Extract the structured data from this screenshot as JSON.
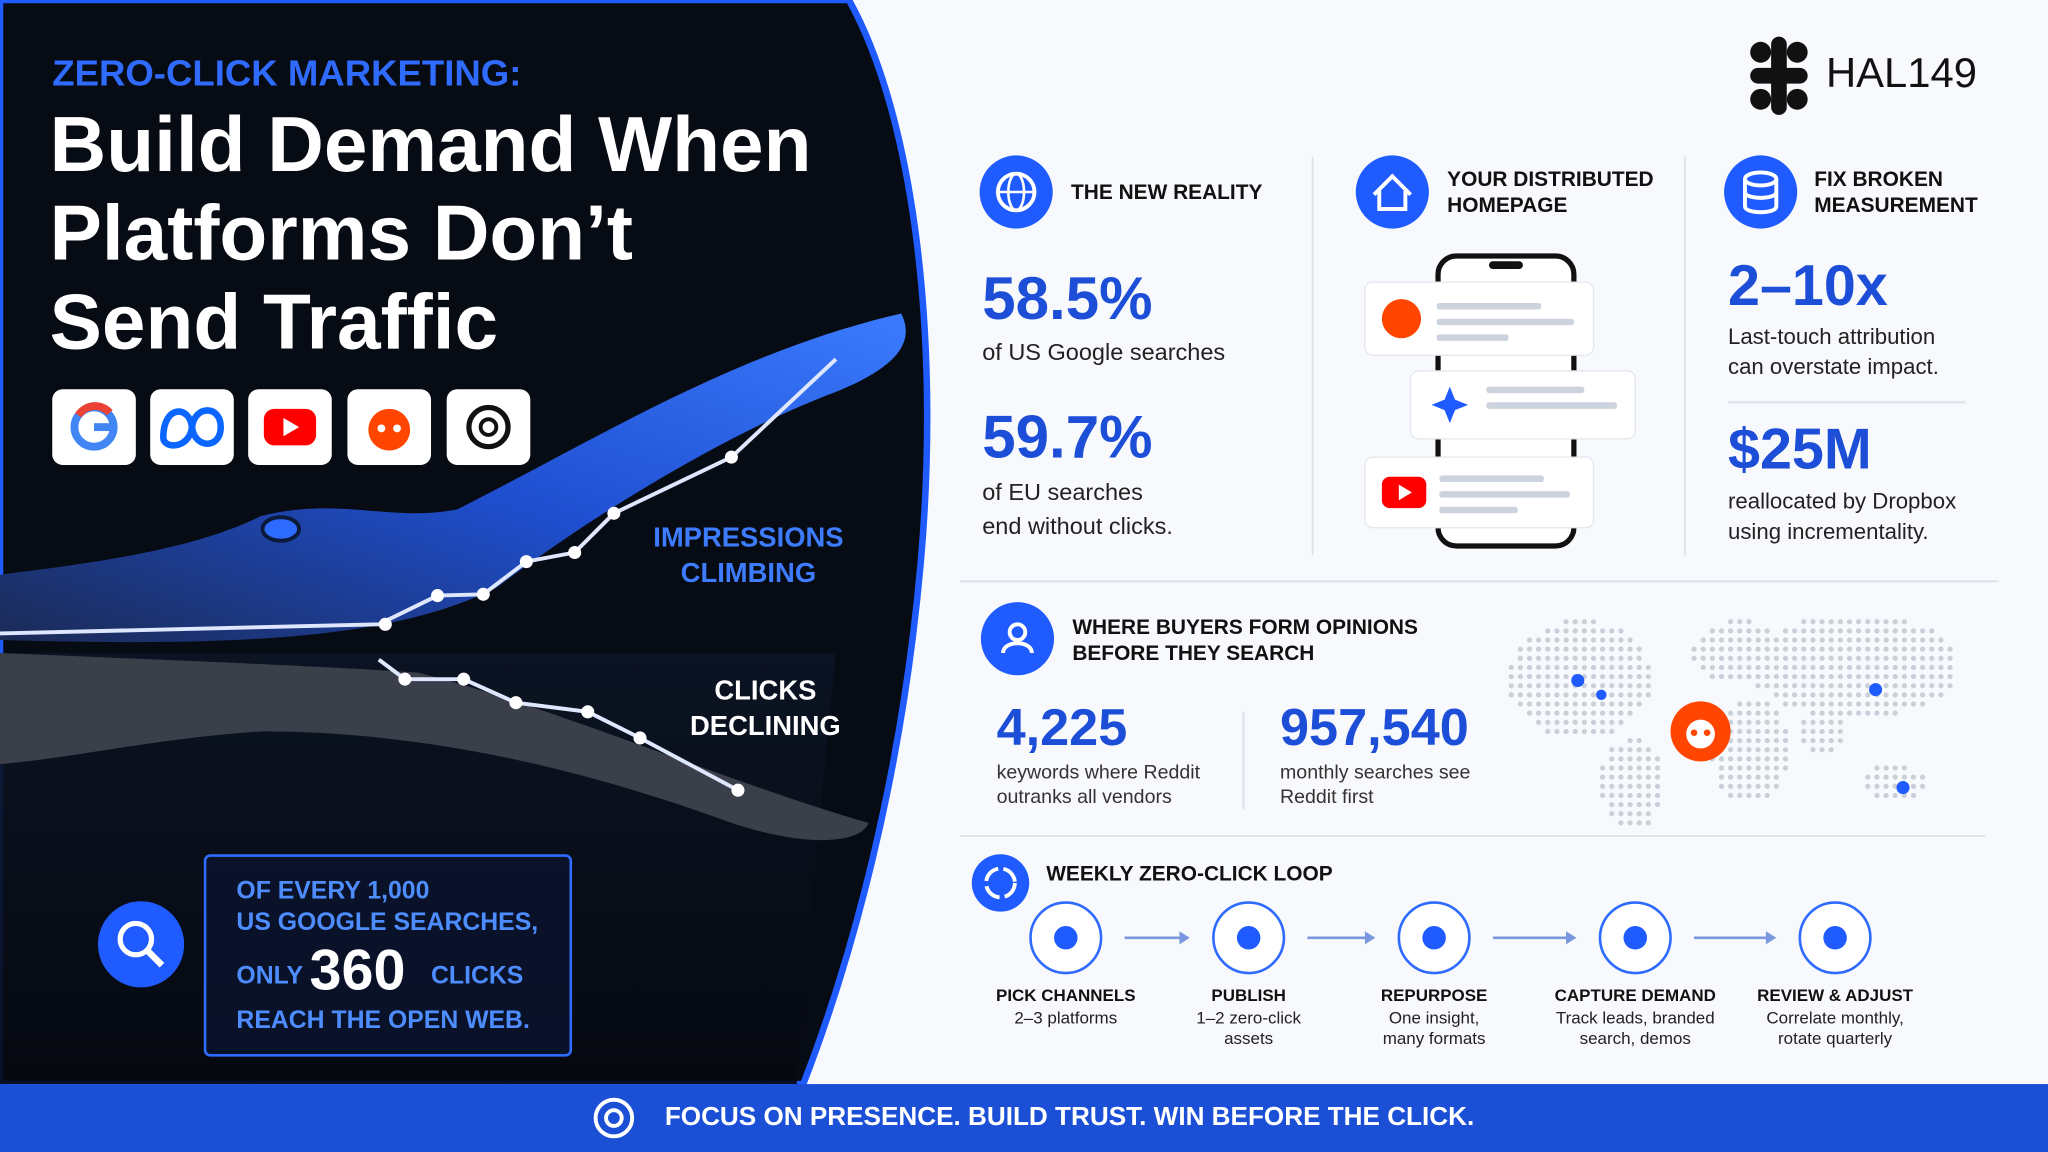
{
  "hero": {
    "kicker": "ZERO-CLICK MARKETING:",
    "title_lines": [
      "Build Demand When",
      "Platforms Don’t",
      "Send Traffic"
    ],
    "impressions_label": [
      "IMPRESSIONS",
      "CLIMBING"
    ],
    "clicks_label": [
      "CLICKS",
      "DECLINING"
    ],
    "callout": {
      "line1": "OF EVERY 1,000",
      "line2": "US GOOGLE SEARCHES,",
      "prefix": "ONLY",
      "number": "360",
      "suffix": "CLICKS",
      "line4": "REACH THE OPEN WEB."
    }
  },
  "logo": {
    "text": "HAL149"
  },
  "new_reality": {
    "title": "THE NEW REALITY",
    "stats": [
      {
        "value": "58.5%",
        "caption": [
          "of US Google searches"
        ]
      },
      {
        "value": "59.7%",
        "caption": [
          "of EU searches",
          "end without clicks."
        ]
      }
    ]
  },
  "distributed_homepage": {
    "title": [
      "YOUR DISTRIBUTED",
      "HOMEPAGE"
    ]
  },
  "measurement": {
    "title": [
      "FIX BROKEN",
      "MEASUREMENT"
    ],
    "stats": [
      {
        "value": "2–10x",
        "caption": [
          "Last-touch attribution",
          "can overstate impact."
        ]
      },
      {
        "value": "$25M",
        "caption": [
          "reallocated by Dropbox",
          "using incrementality."
        ]
      }
    ]
  },
  "buyers": {
    "title": [
      "WHERE BUYERS FORM OPINIONS",
      "BEFORE THEY SEARCH"
    ],
    "stats": [
      {
        "value": "4,225",
        "caption": [
          "keywords where Reddit",
          "outranks all vendors"
        ]
      },
      {
        "value": "957,540",
        "caption": [
          "monthly searches see",
          "Reddit first"
        ]
      }
    ]
  },
  "loop": {
    "title": "WEEKLY ZERO-CLICK LOOP",
    "steps": [
      {
        "name": "PICK CHANNELS",
        "detail": [
          "2–3 platforms"
        ]
      },
      {
        "name": "PUBLISH",
        "detail": [
          "1–2 zero-click",
          "assets"
        ]
      },
      {
        "name": "REPURPOSE",
        "detail": [
          "One insight,",
          "many formats"
        ]
      },
      {
        "name": "CAPTURE DEMAND",
        "detail": [
          "Track leads, branded",
          "search, demos"
        ]
      },
      {
        "name": "REVIEW & ADJUST",
        "detail": [
          "Correlate monthly,",
          "rotate quarterly"
        ]
      }
    ]
  },
  "footer": {
    "text": "FOCUS ON PRESENCE. BUILD TRUST. WIN BEFORE THE CLICK."
  }
}
